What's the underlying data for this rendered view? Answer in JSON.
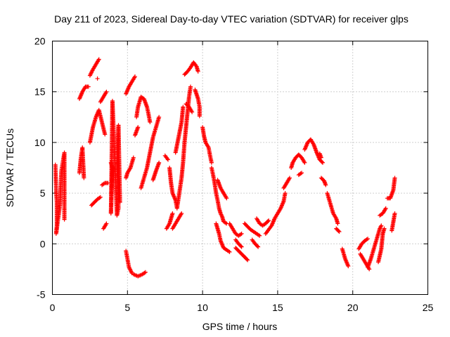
{
  "chart_data": {
    "type": "scatter",
    "title": "Day 211 of 2023, Sidereal Day-to-day VTEC variation (SDTVAR) for receiver glps",
    "xlabel": "GPS time / hours",
    "ylabel": "SDTVAR / TECUs",
    "xlim": [
      0,
      25
    ],
    "ylim": [
      -5,
      20
    ],
    "xticks": [
      "0",
      "5",
      "10",
      "15",
      "20",
      "25"
    ],
    "yticks": [
      "-5",
      "0",
      "5",
      "10",
      "15",
      "20"
    ],
    "grid": true,
    "marker": "+",
    "color": "#ff0000",
    "series": [
      {
        "name": "glps",
        "segments": [
          [
            [
              0.2,
              7.8
            ],
            [
              0.25,
              5.2
            ],
            [
              0.3,
              4.1
            ],
            [
              0.3,
              1.8
            ],
            [
              0.25,
              1.0
            ],
            [
              0.5,
              3.8
            ],
            [
              0.6,
              7.2
            ],
            [
              0.8,
              9.0
            ],
            [
              0.8,
              2.4
            ]
          ],
          [
            [
              1.8,
              7.0
            ],
            [
              1.9,
              8.5
            ],
            [
              2.0,
              9.5
            ],
            [
              2.1,
              6.5
            ]
          ],
          [
            [
              1.8,
              14.3
            ],
            [
              2.0,
              15.0
            ],
            [
              2.2,
              15.5
            ],
            [
              2.4,
              15.5
            ]
          ],
          [
            [
              2.5,
              16.6
            ],
            [
              2.7,
              17.2
            ],
            [
              2.9,
              17.7
            ],
            [
              3.1,
              18.2
            ]
          ],
          [
            [
              2.5,
              10.0
            ],
            [
              2.7,
              11.5
            ],
            [
              2.9,
              12.5
            ],
            [
              3.1,
              13.2
            ],
            [
              3.3,
              12.0
            ],
            [
              3.5,
              10.8
            ]
          ],
          [
            [
              2.6,
              3.8
            ],
            [
              2.8,
              4.1
            ],
            [
              3.0,
              4.4
            ],
            [
              3.2,
              4.6
            ]
          ],
          [
            [
              3.0,
              16.3
            ]
          ],
          [
            [
              3.2,
              14.0
            ],
            [
              3.4,
              14.5
            ],
            [
              3.6,
              15.0
            ]
          ],
          [
            [
              3.3,
              5.8
            ],
            [
              3.5,
              6.0
            ],
            [
              3.7,
              6.0
            ]
          ],
          [
            [
              3.4,
              1.5
            ],
            [
              3.6,
              2.0
            ]
          ],
          [
            [
              3.9,
              8.0
            ],
            [
              4.0,
              7.5
            ],
            [
              3.9,
              3.0
            ],
            [
              4.0,
              14.1
            ],
            [
              4.3,
              2.8
            ],
            [
              4.4,
              3.5
            ],
            [
              4.3,
              8.0
            ],
            [
              4.4,
              11.7
            ],
            [
              4.5,
              4.1
            ]
          ],
          [
            [
              4.9,
              14.8
            ],
            [
              5.1,
              15.5
            ],
            [
              5.3,
              16.0
            ],
            [
              5.5,
              16.5
            ]
          ],
          [
            [
              4.9,
              6.5
            ],
            [
              5.0,
              7.0
            ],
            [
              5.2,
              7.5
            ],
            [
              5.4,
              8.5
            ]
          ],
          [
            [
              4.9,
              -0.7
            ],
            [
              5.0,
              -1.5
            ],
            [
              5.1,
              -2.3
            ],
            [
              5.3,
              -2.9
            ]
          ],
          [
            [
              5.4,
              -3.0
            ],
            [
              5.7,
              -3.2
            ],
            [
              6.0,
              -3.0
            ],
            [
              6.2,
              -2.8
            ]
          ],
          [
            [
              5.6,
              12.5
            ],
            [
              5.7,
              13.5
            ],
            [
              5.9,
              14.5
            ],
            [
              6.1,
              14.3
            ],
            [
              6.3,
              13.5
            ],
            [
              6.4,
              12.8
            ],
            [
              6.5,
              12.0
            ]
          ],
          [
            [
              5.5,
              10.7
            ],
            [
              5.7,
              11.5
            ]
          ],
          [
            [
              5.9,
              5.5
            ],
            [
              6.1,
              6.5
            ],
            [
              6.3,
              7.5
            ],
            [
              6.5,
              9.0
            ],
            [
              6.7,
              10.5
            ],
            [
              6.9,
              11.5
            ],
            [
              7.1,
              12.5
            ]
          ],
          [
            [
              6.7,
              6.3
            ],
            [
              6.9,
              7.2
            ],
            [
              7.1,
              8.0
            ]
          ],
          [
            [
              7.5,
              8.7
            ],
            [
              7.7,
              8.3
            ]
          ],
          [
            [
              7.6,
              1.5
            ],
            [
              7.8,
              2.0
            ],
            [
              7.9,
              2.5
            ],
            [
              8.0,
              3.0
            ]
          ],
          [
            [
              7.8,
              7.5
            ],
            [
              7.9,
              6.0
            ],
            [
              8.0,
              5.0
            ],
            [
              8.2,
              4.3
            ],
            [
              8.3,
              3.5
            ],
            [
              8.4,
              4.5
            ],
            [
              8.5,
              5.5
            ],
            [
              8.6,
              6.5
            ],
            [
              8.7,
              8.0
            ],
            [
              8.8,
              10.0
            ],
            [
              8.9,
              11.5
            ],
            [
              9.0,
              13.0
            ],
            [
              9.1,
              14.5
            ],
            [
              9.2,
              15.5
            ]
          ],
          [
            [
              8.0,
              1.5
            ],
            [
              8.2,
              2.0
            ],
            [
              8.4,
              2.5
            ],
            [
              8.6,
              3.0
            ]
          ],
          [
            [
              8.2,
              9.0
            ],
            [
              8.4,
              10.5
            ],
            [
              8.6,
              12.0
            ],
            [
              8.7,
              13.5
            ]
          ],
          [
            [
              8.8,
              16.7
            ],
            [
              9.0,
              17.0
            ],
            [
              9.2,
              17.4
            ],
            [
              9.4,
              17.9
            ],
            [
              9.6,
              17.5
            ],
            [
              9.7,
              17.0
            ]
          ],
          [
            [
              8.9,
              13.8
            ],
            [
              9.1,
              13.5
            ],
            [
              9.3,
              13.0
            ]
          ],
          [
            [
              9.5,
              15.2
            ],
            [
              9.7,
              14.3
            ],
            [
              9.8,
              13.5
            ],
            [
              9.8,
              12.6
            ]
          ],
          [
            [
              10.0,
              11.5
            ],
            [
              10.1,
              10.6
            ],
            [
              10.2,
              10.0
            ],
            [
              10.4,
              9.5
            ],
            [
              10.5,
              8.7
            ],
            [
              10.6,
              8.0
            ]
          ],
          [
            [
              10.6,
              7.5
            ],
            [
              10.7,
              6.8
            ],
            [
              10.8,
              6.0
            ],
            [
              10.9,
              5.0
            ],
            [
              11.0,
              4.3
            ],
            [
              11.1,
              3.5
            ],
            [
              11.2,
              3.0
            ],
            [
              11.3,
              2.7
            ],
            [
              11.4,
              2.2
            ],
            [
              11.6,
              2.0
            ]
          ],
          [
            [
              10.9,
              2.0
            ],
            [
              11.0,
              1.5
            ],
            [
              11.1,
              1.0
            ],
            [
              11.2,
              0.3
            ],
            [
              11.4,
              -0.4
            ],
            [
              11.6,
              -0.6
            ],
            [
              11.8,
              -0.8
            ]
          ],
          [
            [
              11.0,
              6.3
            ],
            [
              11.2,
              5.5
            ],
            [
              11.4,
              5.0
            ],
            [
              11.6,
              4.5
            ]
          ],
          [
            [
              11.8,
              2.0
            ],
            [
              12.0,
              1.5
            ],
            [
              12.2,
              1.0
            ],
            [
              12.4,
              0.8
            ],
            [
              12.6,
              1.0
            ]
          ],
          [
            [
              12.2,
              -0.4
            ],
            [
              12.4,
              -0.7
            ],
            [
              12.6,
              -1.0
            ],
            [
              12.8,
              -1.3
            ],
            [
              13.0,
              -1.6
            ]
          ],
          [
            [
              12.2,
              0.4
            ],
            [
              12.4,
              0.0
            ],
            [
              12.6,
              -0.3
            ]
          ],
          [
            [
              12.8,
              2.0
            ],
            [
              13.0,
              1.7
            ],
            [
              13.2,
              1.4
            ],
            [
              13.4,
              1.2
            ],
            [
              13.6,
              1.0
            ],
            [
              13.8,
              0.8
            ]
          ],
          [
            [
              13.3,
              0.4
            ],
            [
              13.5,
              0.0
            ],
            [
              13.7,
              -0.3
            ]
          ],
          [
            [
              13.6,
              2.5
            ],
            [
              13.8,
              2.0
            ],
            [
              14.0,
              1.8
            ],
            [
              14.2,
              2.0
            ],
            [
              14.4,
              2.3
            ]
          ],
          [
            [
              14.2,
              1.0
            ],
            [
              14.4,
              1.4
            ],
            [
              14.6,
              1.8
            ],
            [
              14.8,
              2.5
            ],
            [
              15.0,
              3.0
            ],
            [
              15.2,
              3.5
            ],
            [
              15.4,
              4.2
            ],
            [
              15.5,
              5.0
            ]
          ],
          [
            [
              15.4,
              5.5
            ],
            [
              15.6,
              6.0
            ],
            [
              15.8,
              6.5
            ]
          ],
          [
            [
              15.9,
              7.5
            ],
            [
              16.0,
              8.0
            ],
            [
              16.2,
              8.5
            ],
            [
              16.4,
              8.8
            ],
            [
              16.6,
              8.5
            ],
            [
              16.8,
              8.0
            ]
          ],
          [
            [
              16.4,
              6.8
            ],
            [
              16.6,
              7.0
            ]
          ],
          [
            [
              16.8,
              9.3
            ],
            [
              17.0,
              10.0
            ],
            [
              17.2,
              10.3
            ],
            [
              17.4,
              9.8
            ],
            [
              17.6,
              9.0
            ],
            [
              17.8,
              8.3
            ],
            [
              18.0,
              8.0
            ]
          ],
          [
            [
              17.8,
              8.9
            ],
            [
              17.9,
              8.5
            ]
          ],
          [
            [
              17.9,
              6.5
            ],
            [
              18.1,
              6.2
            ],
            [
              18.2,
              5.8
            ]
          ],
          [
            [
              18.3,
              5.0
            ],
            [
              18.5,
              4.0
            ],
            [
              18.7,
              3.0
            ],
            [
              18.9,
              2.5
            ],
            [
              19.0,
              2.0
            ]
          ],
          [
            [
              18.9,
              1.5
            ],
            [
              19.1,
              1.2
            ]
          ],
          [
            [
              19.3,
              -0.5
            ],
            [
              19.5,
              -1.5
            ],
            [
              19.7,
              -2.2
            ]
          ],
          [
            [
              20.4,
              -0.5
            ],
            [
              20.6,
              0.0
            ],
            [
              20.8,
              0.3
            ],
            [
              21.0,
              0.5
            ]
          ],
          [
            [
              20.5,
              -1.0
            ],
            [
              20.7,
              -1.5
            ],
            [
              20.9,
              -2.0
            ],
            [
              21.1,
              -2.5
            ]
          ],
          [
            [
              21.0,
              -2.3
            ],
            [
              21.2,
              -1.5
            ],
            [
              21.4,
              -0.5
            ],
            [
              21.6,
              0.5
            ],
            [
              21.8,
              1.5
            ],
            [
              21.9,
              1.8
            ]
          ],
          [
            [
              21.7,
              -1.8
            ],
            [
              21.9,
              -0.5
            ],
            [
              22.0,
              1.0
            ],
            [
              22.1,
              1.5
            ]
          ],
          [
            [
              21.8,
              2.8
            ],
            [
              22.0,
              3.0
            ],
            [
              22.2,
              3.5
            ]
          ],
          [
            [
              22.3,
              4.5
            ],
            [
              22.5,
              4.5
            ],
            [
              22.7,
              5.3
            ],
            [
              22.8,
              6.5
            ]
          ],
          [
            [
              22.6,
              1.3
            ],
            [
              22.8,
              3.0
            ]
          ]
        ]
      }
    ]
  }
}
